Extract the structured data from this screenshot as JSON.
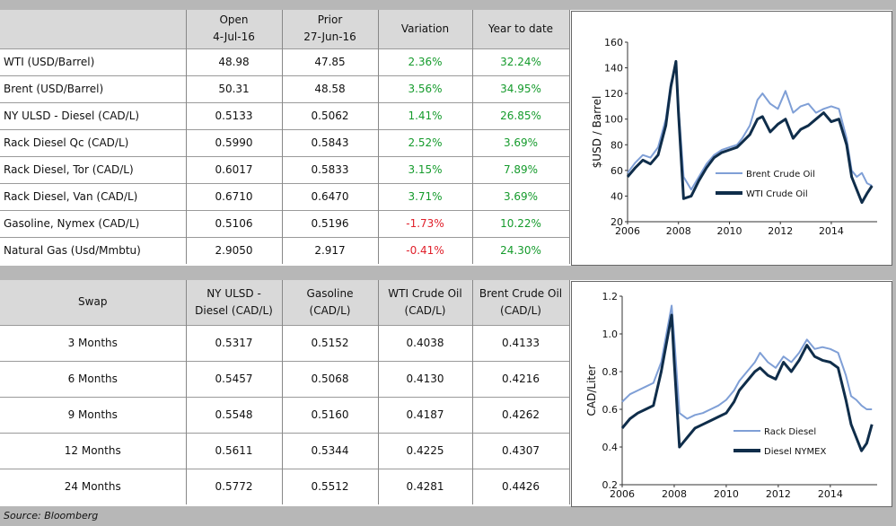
{
  "top_table": {
    "headers": [
      {
        "line1": "",
        "line2": ""
      },
      {
        "line1": "Open",
        "line2": "4-Jul-16"
      },
      {
        "line1": "Prior",
        "line2": "27-Jun-16"
      },
      {
        "line1": "Variation",
        "line2": ""
      },
      {
        "line1": "Year to date",
        "line2": ""
      }
    ],
    "rows": [
      {
        "label": "WTI (USD/Barrel)",
        "open": "48.98",
        "prior": "47.85",
        "variation": "2.36%",
        "ytd": "32.24%",
        "var_sign": "pos"
      },
      {
        "label": "Brent (USD/Barrel)",
        "open": "50.31",
        "prior": "48.58",
        "variation": "3.56%",
        "ytd": "34.95%",
        "var_sign": "pos"
      },
      {
        "label": "NY ULSD - Diesel (CAD/L)",
        "open": "0.5133",
        "prior": "0.5062",
        "variation": "1.41%",
        "ytd": "26.85%",
        "var_sign": "pos"
      },
      {
        "label": "Rack Diesel Qc (CAD/L)",
        "open": "0.5990",
        "prior": "0.5843",
        "variation": "2.52%",
        "ytd": "3.69%",
        "var_sign": "pos"
      },
      {
        "label": "Rack Diesel, Tor (CAD/L)",
        "open": "0.6017",
        "prior": "0.5833",
        "variation": "3.15%",
        "ytd": "7.89%",
        "var_sign": "pos"
      },
      {
        "label": "Rack Diesel, Van (CAD/L)",
        "open": "0.6710",
        "prior": "0.6470",
        "variation": "3.71%",
        "ytd": "3.69%",
        "var_sign": "pos"
      },
      {
        "label": "Gasoline, Nymex (CAD/L)",
        "open": "0.5106",
        "prior": "0.5196",
        "variation": "-1.73%",
        "ytd": "10.22%",
        "var_sign": "neg"
      },
      {
        "label": "Natural Gas (Usd/Mmbtu)",
        "open": "2.9050",
        "prior": "2.917",
        "variation": "-0.41%",
        "ytd": "24.30%",
        "var_sign": "neg"
      }
    ]
  },
  "swap_table": {
    "headers": [
      {
        "line1": "Swap",
        "line2": ""
      },
      {
        "line1": "NY ULSD -",
        "line2": "Diesel (CAD/L)"
      },
      {
        "line1": "Gasoline",
        "line2": "(CAD/L)"
      },
      {
        "line1": "WTI Crude Oil",
        "line2": "(CAD/L)"
      },
      {
        "line1": "Brent Crude Oil",
        "line2": "(CAD/L)"
      }
    ],
    "rows": [
      {
        "term": "3 Months",
        "ulsd": "0.5317",
        "gasoline": "0.5152",
        "wti": "0.4038",
        "brent": "0.4133"
      },
      {
        "term": "6 Months",
        "ulsd": "0.5457",
        "gasoline": "0.5068",
        "wti": "0.4130",
        "brent": "0.4216"
      },
      {
        "term": "9 Months",
        "ulsd": "0.5548",
        "gasoline": "0.5160",
        "wti": "0.4187",
        "brent": "0.4262"
      },
      {
        "term": "12 Months",
        "ulsd": "0.5611",
        "gasoline": "0.5344",
        "wti": "0.4225",
        "brent": "0.4307"
      },
      {
        "term": "24 Months",
        "ulsd": "0.5772",
        "gasoline": "0.5512",
        "wti": "0.4281",
        "brent": "0.4426"
      }
    ]
  },
  "source": "Source: Bloomberg",
  "colors": {
    "brent": "#7f9fd6",
    "wti": "#0f2d4a",
    "positive": "#159b2c",
    "negative": "#e0202b",
    "band": "#b7b7b7",
    "header": "#d9d9d9"
  },
  "chart_data": [
    {
      "type": "line",
      "title": "",
      "xlabel": "",
      "ylabel": "$USD / Barrel",
      "xlim": [
        2006,
        2015.8
      ],
      "ylim": [
        20,
        160
      ],
      "xticks": [
        "2006",
        "2008",
        "2010",
        "2012",
        "2014"
      ],
      "yticks": [
        "20",
        "40",
        "60",
        "80",
        "100",
        "120",
        "140",
        "160"
      ],
      "legend_position": "bottom-right",
      "series": [
        {
          "name": "Brent Crude Oil",
          "color": "#7f9fd6",
          "x": [
            2006.0,
            2006.3,
            2006.6,
            2006.9,
            2007.2,
            2007.5,
            2007.7,
            2007.9,
            2008.0,
            2008.2,
            2008.5,
            2008.8,
            2009.1,
            2009.4,
            2009.7,
            2010.0,
            2010.3,
            2010.5,
            2010.8,
            2011.1,
            2011.3,
            2011.6,
            2011.9,
            2012.2,
            2012.5,
            2012.8,
            2013.1,
            2013.4,
            2013.7,
            2014.0,
            2014.3,
            2014.6,
            2014.8,
            2015.0,
            2015.2,
            2015.4,
            2015.6
          ],
          "y": [
            58,
            66,
            72,
            70,
            78,
            100,
            128,
            143,
            110,
            55,
            45,
            55,
            65,
            72,
            76,
            78,
            80,
            85,
            95,
            115,
            120,
            112,
            108,
            122,
            105,
            110,
            112,
            105,
            108,
            110,
            108,
            85,
            60,
            55,
            58,
            50,
            48
          ]
        },
        {
          "name": "WTI Crude Oil",
          "color": "#0f2d4a",
          "x": [
            2006.0,
            2006.3,
            2006.6,
            2006.9,
            2007.2,
            2007.5,
            2007.7,
            2007.9,
            2008.0,
            2008.2,
            2008.5,
            2008.8,
            2009.1,
            2009.4,
            2009.7,
            2010.0,
            2010.3,
            2010.5,
            2010.8,
            2011.1,
            2011.3,
            2011.6,
            2011.9,
            2012.2,
            2012.5,
            2012.8,
            2013.1,
            2013.4,
            2013.7,
            2014.0,
            2014.3,
            2014.6,
            2014.8,
            2015.0,
            2015.2,
            2015.4,
            2015.6
          ],
          "y": [
            55,
            62,
            68,
            65,
            72,
            95,
            125,
            145,
            105,
            38,
            40,
            52,
            62,
            70,
            74,
            76,
            78,
            82,
            88,
            100,
            102,
            90,
            96,
            100,
            85,
            92,
            95,
            100,
            105,
            98,
            100,
            80,
            55,
            45,
            35,
            42,
            48
          ]
        }
      ]
    },
    {
      "type": "line",
      "title": "",
      "xlabel": "",
      "ylabel": "CAD/Liter",
      "xlim": [
        2006,
        2015.8
      ],
      "ylim": [
        0.2,
        1.2
      ],
      "xticks": [
        "2006",
        "2008",
        "2010",
        "2012",
        "2014"
      ],
      "yticks": [
        "0.2",
        "0.4",
        "0.6",
        "0.8",
        "1.0",
        "1.2"
      ],
      "legend_position": "bottom-right",
      "series": [
        {
          "name": "Rack Diesel",
          "color": "#7f9fd6",
          "x": [
            2006.0,
            2006.3,
            2006.6,
            2006.9,
            2007.2,
            2007.5,
            2007.7,
            2007.9,
            2008.0,
            2008.2,
            2008.5,
            2008.8,
            2009.1,
            2009.4,
            2009.7,
            2010.0,
            2010.3,
            2010.5,
            2010.8,
            2011.1,
            2011.3,
            2011.6,
            2011.9,
            2012.2,
            2012.5,
            2012.8,
            2013.1,
            2013.4,
            2013.7,
            2014.0,
            2014.3,
            2014.6,
            2014.8,
            2015.0,
            2015.2,
            2015.4,
            2015.6
          ],
          "y": [
            0.64,
            0.68,
            0.7,
            0.72,
            0.74,
            0.85,
            1.0,
            1.15,
            0.98,
            0.58,
            0.55,
            0.57,
            0.58,
            0.6,
            0.62,
            0.65,
            0.7,
            0.75,
            0.8,
            0.85,
            0.9,
            0.85,
            0.82,
            0.88,
            0.85,
            0.9,
            0.97,
            0.92,
            0.93,
            0.92,
            0.9,
            0.78,
            0.67,
            0.65,
            0.62,
            0.6,
            0.6
          ]
        },
        {
          "name": "Diesel NYMEX",
          "color": "#0f2d4a",
          "x": [
            2006.0,
            2006.3,
            2006.6,
            2006.9,
            2007.2,
            2007.5,
            2007.7,
            2007.9,
            2008.0,
            2008.2,
            2008.5,
            2008.8,
            2009.1,
            2009.4,
            2009.7,
            2010.0,
            2010.3,
            2010.5,
            2010.8,
            2011.1,
            2011.3,
            2011.6,
            2011.9,
            2012.2,
            2012.5,
            2012.8,
            2013.1,
            2013.4,
            2013.7,
            2014.0,
            2014.3,
            2014.6,
            2014.8,
            2015.0,
            2015.2,
            2015.4,
            2015.6
          ],
          "y": [
            0.5,
            0.55,
            0.58,
            0.6,
            0.62,
            0.8,
            0.95,
            1.1,
            0.85,
            0.4,
            0.45,
            0.5,
            0.52,
            0.54,
            0.56,
            0.58,
            0.64,
            0.7,
            0.75,
            0.8,
            0.82,
            0.78,
            0.76,
            0.85,
            0.8,
            0.86,
            0.94,
            0.88,
            0.86,
            0.85,
            0.82,
            0.65,
            0.52,
            0.45,
            0.38,
            0.42,
            0.52
          ]
        }
      ]
    }
  ]
}
